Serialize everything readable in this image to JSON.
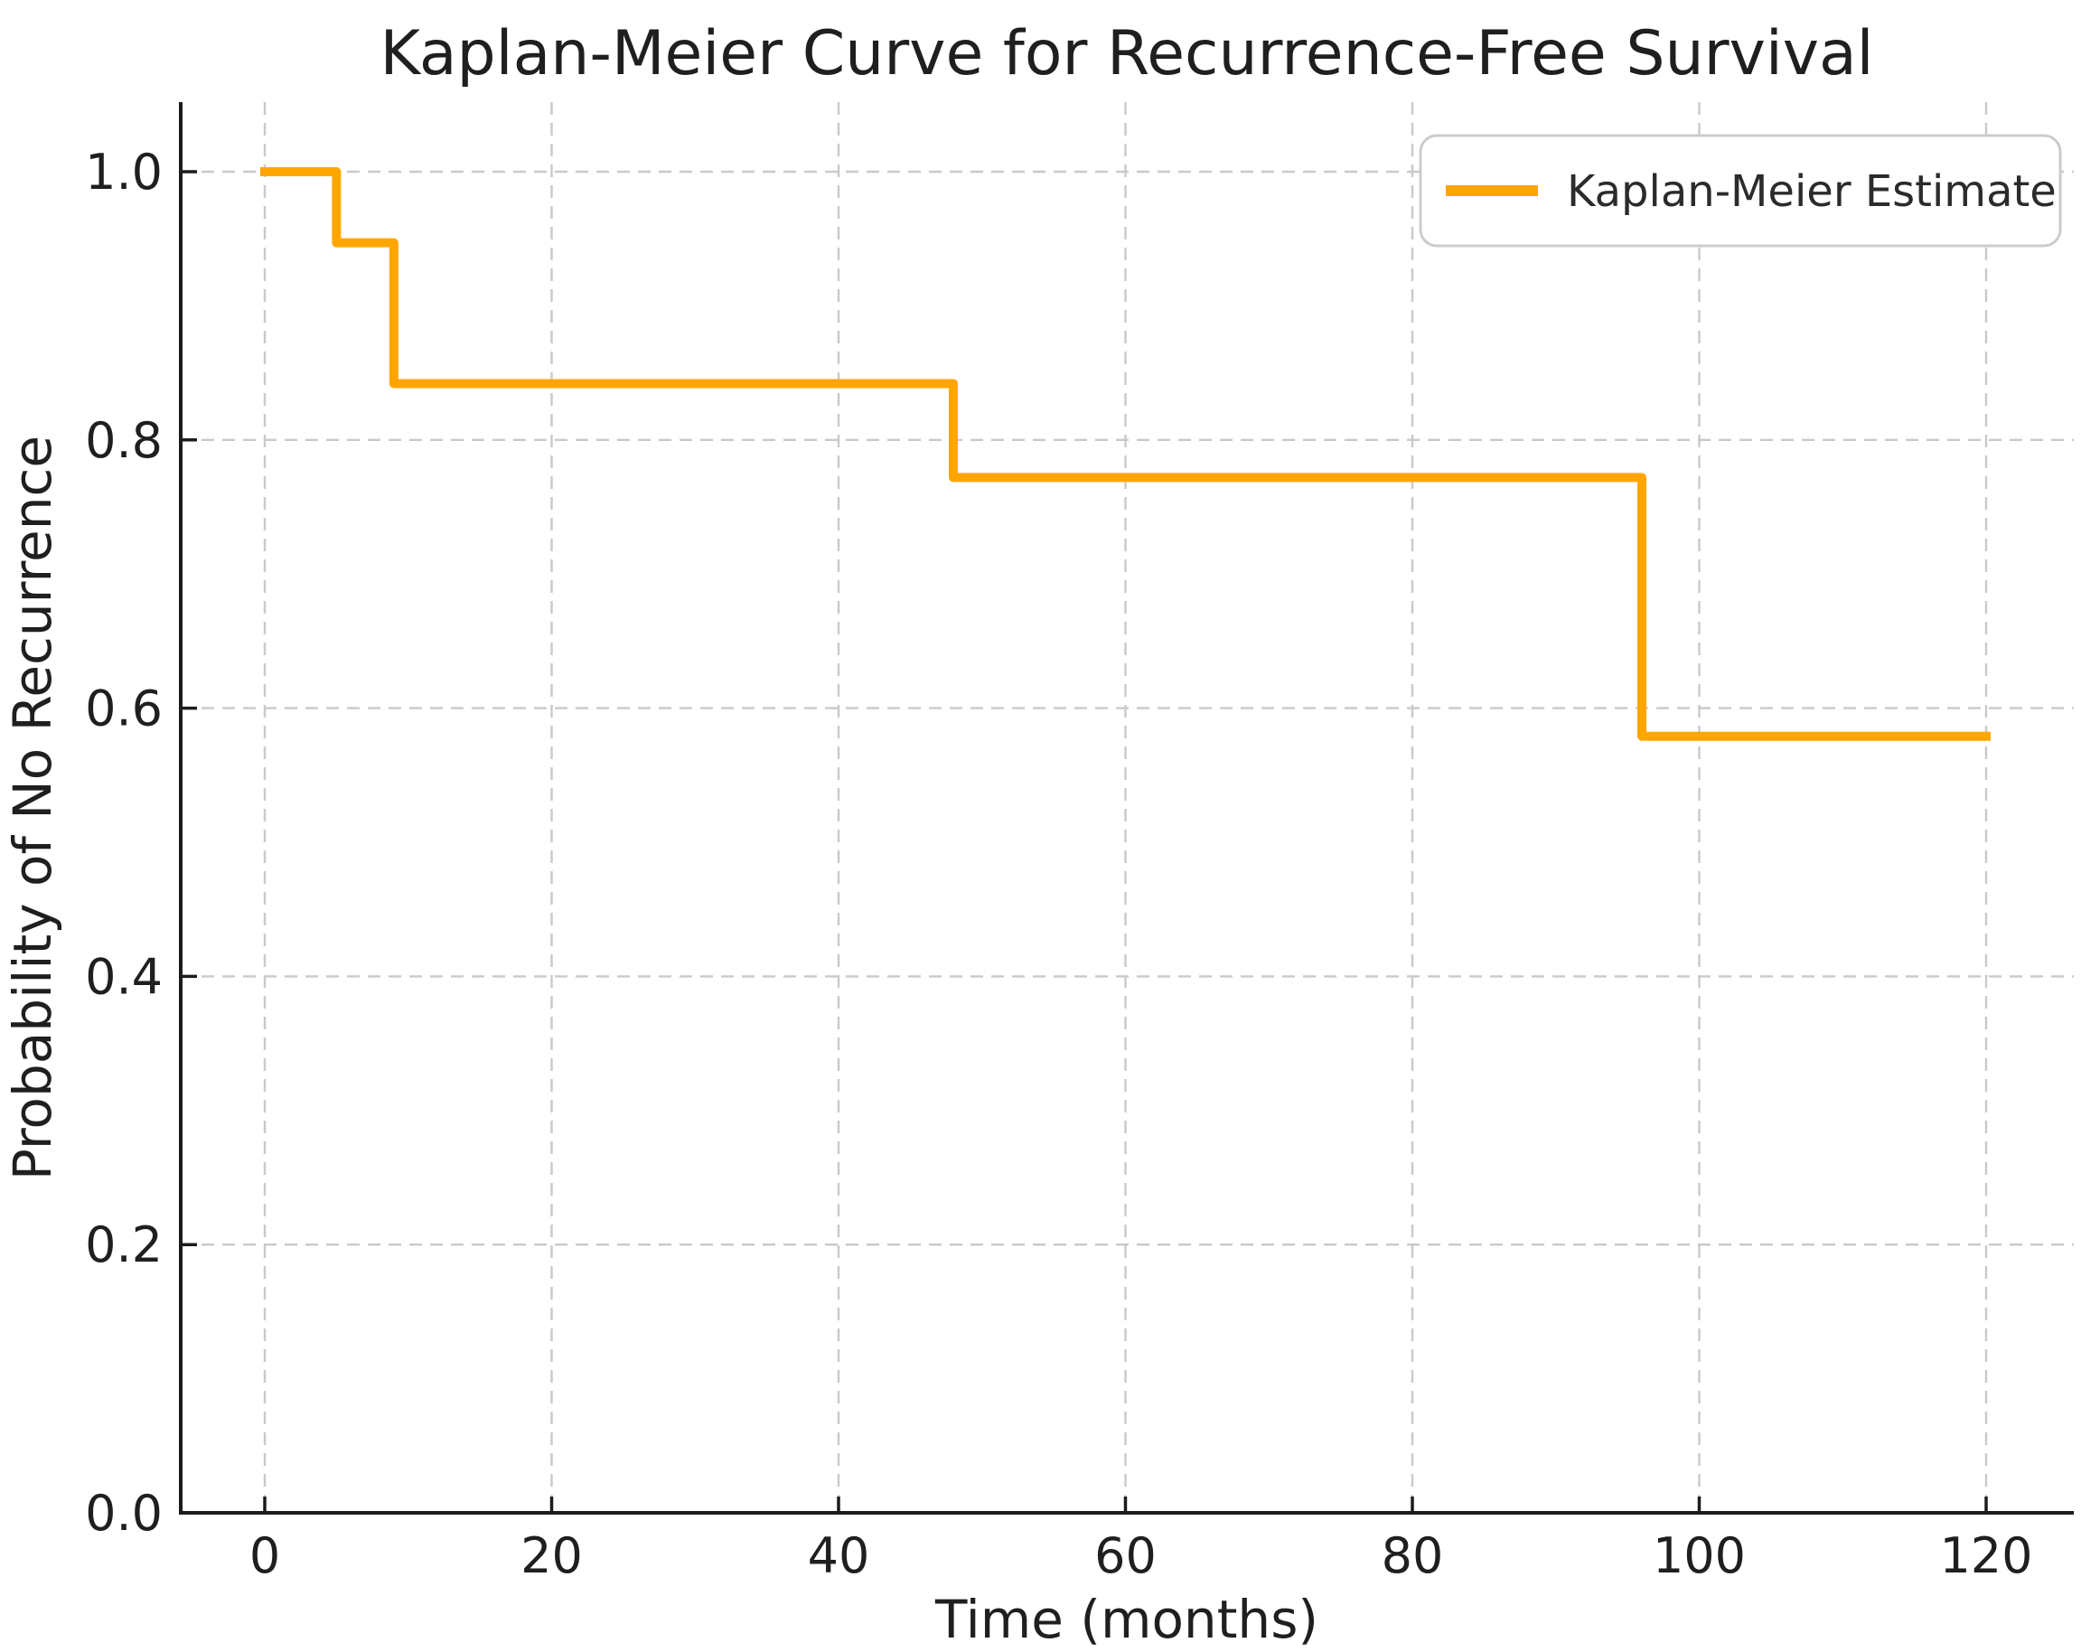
{
  "figure": {
    "title": "Kaplan-Meier Curve for Recurrence-Free Survival"
  },
  "legend": {
    "label": "Kaplan-Meier Estimate",
    "position": "upper right"
  },
  "colors": {
    "curve": "#FFA500",
    "grid": "#c9c9c9",
    "spine": "#1c1c1c",
    "text": "#1f1f1f",
    "legend_border": "#cccccc",
    "background": "#ffffff"
  },
  "chart_data": {
    "type": "line",
    "step": "post",
    "title": "Kaplan-Meier Curve for Recurrence-Free Survival",
    "xlabel": "Time (months)",
    "ylabel": "Probability of No Recurrence",
    "x_ticks": [
      0,
      20,
      40,
      60,
      80,
      100,
      120
    ],
    "x_tick_labels": [
      "0",
      "20",
      "40",
      "60",
      "80",
      "100",
      "120"
    ],
    "y_ticks": [
      0.0,
      0.2,
      0.4,
      0.6,
      0.8,
      1.0
    ],
    "y_tick_labels": [
      "0.0",
      "0.2",
      "0.4",
      "0.6",
      "0.8",
      "1.0"
    ],
    "xlim": [
      -6,
      126
    ],
    "ylim": [
      0.0,
      1.05
    ],
    "grid": true,
    "grid_style": "dashed",
    "legend_position": "upper right",
    "series": [
      {
        "name": "Kaplan-Meier Estimate",
        "color": "#FFA500",
        "x": [
          0,
          5,
          9,
          48,
          96,
          120
        ],
        "y": [
          1.0,
          0.947,
          0.842,
          0.772,
          0.579,
          0.579
        ],
        "event_times": [
          5,
          9,
          48,
          96
        ],
        "survival_after_event": [
          0.947,
          0.842,
          0.772,
          0.579
        ]
      }
    ]
  }
}
